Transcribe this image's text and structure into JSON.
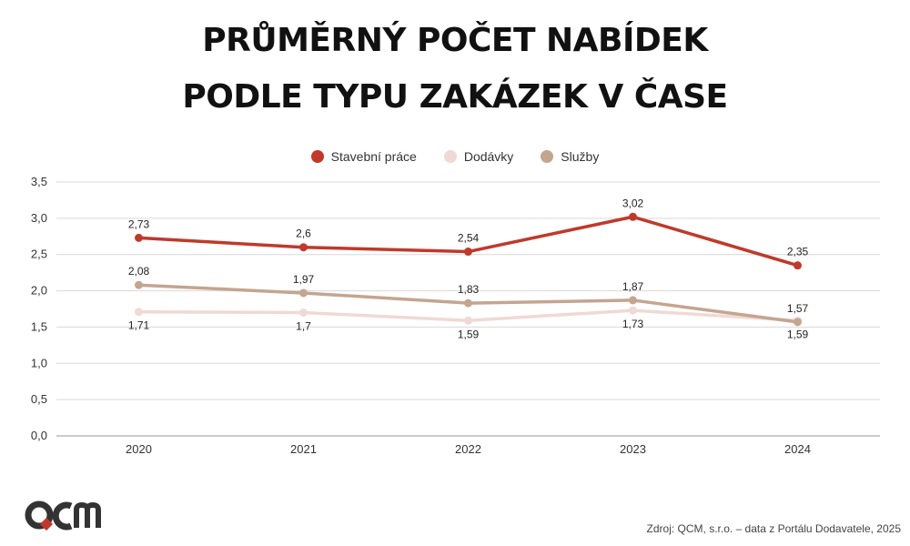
{
  "title_lines": [
    "PRŮMĚRNÝ POČET NABÍDEK",
    "PODLE TYPU ZAKÁZEK V ČASE"
  ],
  "source": "Zdroj: QCM, s.r.o. – data z Portálu Dodavatele, 2025",
  "logo_text": "QCM",
  "chart_data": {
    "type": "line",
    "title": "PRŮMĚRNÝ POČET NABÍDEK PODLE TYPU ZAKÁZEK V ČASE",
    "x": [
      "2020",
      "2021",
      "2022",
      "2023",
      "2024"
    ],
    "ylim": [
      0,
      3.5
    ],
    "yticks": [
      "0,0",
      "0,5",
      "1,0",
      "1,5",
      "2,0",
      "2,5",
      "3,0",
      "3,5"
    ],
    "grid": true,
    "legend_position": "top-center",
    "series": [
      {
        "name": "Stavební práce",
        "color": "#c0392b",
        "values": [
          2.73,
          2.6,
          2.54,
          3.02,
          2.35
        ],
        "labels": [
          "2,73",
          "2,6",
          "2,54",
          "3,02",
          "2,35"
        ],
        "label_side": "above"
      },
      {
        "name": "Dodávky",
        "color": "#f0d9d4",
        "values": [
          1.71,
          1.7,
          1.59,
          1.73,
          1.59
        ],
        "labels": [
          "1,71",
          "1,7",
          "1,59",
          "1,73",
          "1,59"
        ],
        "label_side": "below"
      },
      {
        "name": "Služby",
        "color": "#c4a590",
        "values": [
          2.08,
          1.97,
          1.83,
          1.87,
          1.57
        ],
        "labels": [
          "2,08",
          "1,97",
          "1,83",
          "1,87",
          "1,57"
        ],
        "label_side": "above"
      }
    ]
  }
}
